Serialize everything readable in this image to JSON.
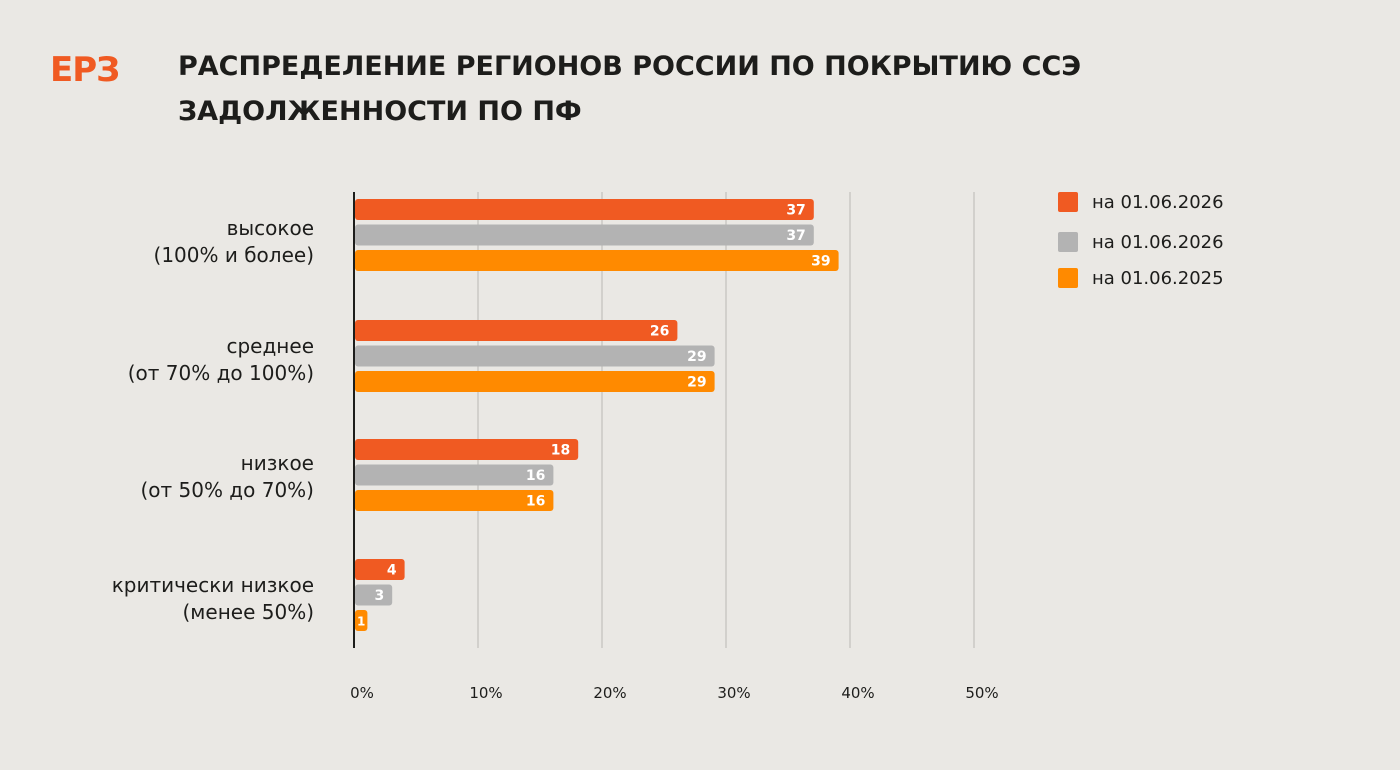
{
  "header": {
    "logo": "ЕРЗ",
    "title_line1": "РАСПРЕДЕЛЕНИЕ РЕГИОНОВ РОССИИ ПО ПОКРЫТИЮ ССЭ",
    "title_line2": "ЗАДОЛЖЕННОСТИ ПО ПФ"
  },
  "chart_data": {
    "type": "bar",
    "orientation": "horizontal",
    "categories": [
      [
        "высокое",
        "(100% и более)"
      ],
      [
        "среднее",
        "(от 70% до 100%)"
      ],
      [
        "низкое",
        "(от 50% до 70%)"
      ],
      [
        "критически низкое",
        "(менее 50%)"
      ]
    ],
    "series": [
      {
        "name": "на 01.06.2026",
        "color": "#F05A22",
        "values": [
          37,
          26,
          18,
          4
        ]
      },
      {
        "name": "на 01.06.2026",
        "color": "#B3B3B3",
        "values": [
          37,
          29,
          16,
          3
        ]
      },
      {
        "name": "на 01.06.2025",
        "color": "#FF8A00",
        "values": [
          39,
          29,
          16,
          1
        ]
      }
    ],
    "x_ticks": [
      "0%",
      "10%",
      "20%",
      "30%",
      "40%",
      "50%"
    ],
    "xlim": [
      0,
      50
    ],
    "grid": true,
    "legend_position": "top-right"
  }
}
